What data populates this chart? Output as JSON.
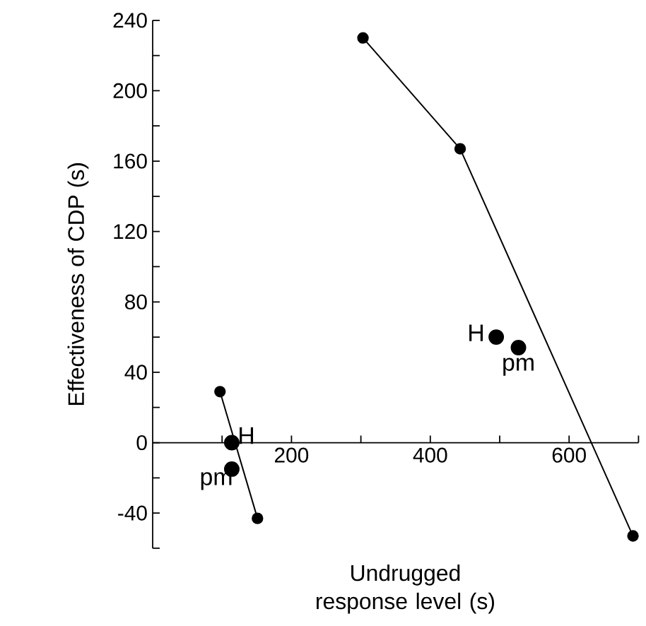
{
  "chart_data": {
    "type": "line",
    "xlabel": "Undrugged response level (s)",
    "ylabel": "Effectiveness of CDP (s)",
    "xlim": [
      0,
      700
    ],
    "ylim": [
      -60,
      240
    ],
    "xticks": [
      {
        "value": 100,
        "label": null
      },
      200,
      {
        "value": 300,
        "label": null
      },
      400,
      {
        "value": 500,
        "label": null
      },
      600,
      {
        "value": 700,
        "label": null
      }
    ],
    "yticks": [
      {
        "value": -60,
        "label": null
      },
      -40,
      {
        "value": -20,
        "label": null
      },
      0,
      {
        "value": 20,
        "label": null
      },
      40,
      {
        "value": 60,
        "label": null
      },
      80,
      {
        "value": 100,
        "label": null
      },
      120,
      {
        "value": 140,
        "label": null
      },
      160,
      {
        "value": 180,
        "label": null
      },
      200,
      {
        "value": 220,
        "label": null
      },
      240
    ],
    "marker": "circle",
    "grid": false,
    "series": [
      {
        "color": "#000000",
        "x": [
          303,
          443,
          692
        ],
        "values": [
          230,
          167,
          -53
        ]
      },
      {
        "color": "#000000",
        "x": [
          97,
          151
        ],
        "values": [
          29,
          -43
        ]
      },
      {
        "type": "scatter",
        "color": "#000000",
        "x": [
          495,
          527
        ],
        "values": [
          60,
          54
        ]
      },
      {
        "type": "scatter",
        "color": "#000000",
        "x": [
          114,
          114
        ],
        "values": [
          0,
          -15
        ]
      }
    ],
    "annotations": [
      {
        "text": "H",
        "x": 495,
        "y": 60
      },
      {
        "text": "pm",
        "x": 527,
        "y": 54
      },
      {
        "text": "H",
        "x": 114,
        "y": 0
      },
      {
        "text": "pm",
        "x": 114,
        "y": -15
      }
    ]
  }
}
